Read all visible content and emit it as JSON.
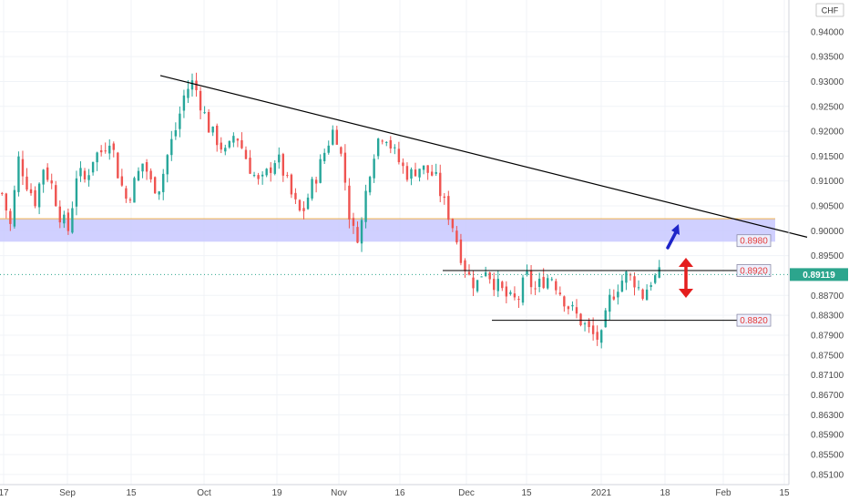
{
  "chart_data": {
    "type": "candlestick",
    "currency_label": "CHF",
    "y_ticks": [
      "0.94000",
      "0.93500",
      "0.93000",
      "0.92500",
      "0.92000",
      "0.91500",
      "0.91000",
      "0.90500",
      "0.90000",
      "0.89500",
      "0.88700",
      "0.88300",
      "0.87900",
      "0.87500",
      "0.87100",
      "0.86700",
      "0.86300",
      "0.85900",
      "0.85500",
      "0.85100"
    ],
    "x_ticks": [
      "17",
      "Sep",
      "15",
      "Oct",
      "19",
      "Nov",
      "16",
      "Dec",
      "15",
      "2021",
      "18",
      "Feb",
      "15"
    ],
    "ylim": [
      0.8475,
      0.944
    ],
    "current_price": {
      "label": "0.89119",
      "value": 0.89119,
      "color": "#2ca58d"
    },
    "resistance_zone": {
      "low": 0.8978,
      "high": 0.9024,
      "color": "#c8c8ff"
    },
    "levels": [
      {
        "label": "0.8980",
        "value": 0.898
      },
      {
        "label": "0.8920",
        "value": 0.892
      },
      {
        "label": "0.8820",
        "value": 0.882
      }
    ],
    "trendline": {
      "start": {
        "x": "Sep 26",
        "y": 0.9312
      },
      "end": {
        "x": "Feb 14",
        "y": 0.8987
      }
    },
    "ohlc_path": [
      0.9075,
      0.901,
      0.9145,
      0.9095,
      0.906,
      0.913,
      0.909,
      0.903,
      0.9,
      0.912,
      0.91,
      0.915,
      0.916,
      0.919,
      0.911,
      0.906,
      0.91,
      0.914,
      0.909,
      0.909,
      0.916,
      0.921,
      0.928,
      0.93,
      0.925,
      0.92,
      0.918,
      0.915,
      0.92,
      0.916,
      0.912,
      0.909,
      0.912,
      0.915,
      0.911,
      0.906,
      0.903,
      0.908,
      0.912,
      0.917,
      0.921,
      0.913,
      0.9,
      0.899,
      0.911,
      0.918,
      0.92,
      0.916,
      0.913,
      0.911,
      0.913,
      0.912,
      0.911,
      0.906,
      0.902,
      0.896,
      0.891,
      0.889,
      0.893,
      0.89,
      0.888,
      0.886,
      0.886,
      0.891,
      0.888,
      0.89,
      0.891,
      0.888,
      0.885,
      0.883,
      0.881,
      0.879,
      0.878,
      0.886,
      0.889,
      0.891,
      0.89,
      0.887,
      0.89,
      0.891
    ],
    "colors": {
      "up": "#26a69a",
      "down": "#ef5350",
      "trendline": "#000000",
      "arrow_up": "#1e24c8",
      "arrow_range": "#e41e1e"
    },
    "grid": true
  }
}
